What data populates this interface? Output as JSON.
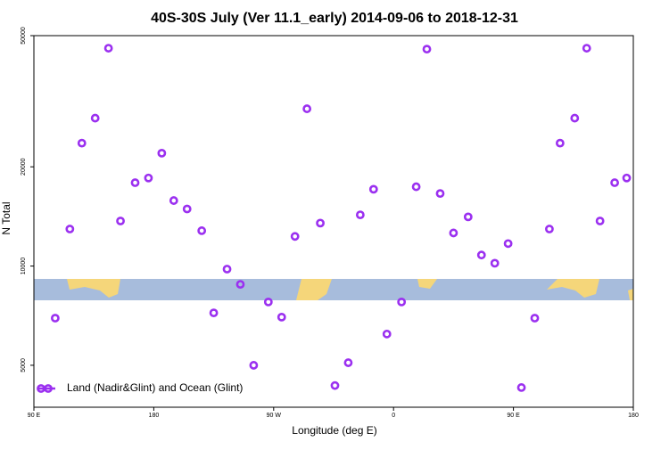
{
  "chart_data": {
    "type": "scatter",
    "title": "40S-30S July (Ver 11.1_early)   2014-09-06 to 2018-12-31",
    "x_label": "Longitude (deg E)",
    "y_label": "N Total",
    "log_y": true,
    "legend": "bottom-left",
    "xlim": [
      90,
      540
    ],
    "xticks": [
      {
        "value": 90,
        "label": "90 E"
      },
      180,
      {
        "value": 270,
        "label": "90 W"
      },
      {
        "value": 360,
        "label": "0"
      },
      {
        "value": 450,
        "label": "90 E"
      },
      {
        "value": 540,
        "label": "180"
      }
    ],
    "ylim": [
      3730,
      50000
    ],
    "yticks": [
      5000,
      10000,
      20000,
      50000
    ],
    "series": [
      {
        "name": "Land (Nadir&Glint) and Ocean (Glint)",
        "color": "#9b30f0",
        "x": [
          106,
          117,
          126,
          136,
          146,
          155,
          166,
          176,
          186,
          195,
          205,
          216,
          225,
          235,
          245,
          255,
          266,
          276,
          286,
          295,
          305,
          316,
          326,
          335,
          345,
          355,
          366,
          377,
          385,
          395,
          405,
          416,
          426,
          436,
          446,
          456,
          466,
          477,
          485,
          496,
          505,
          515,
          526,
          535
        ],
        "values": [
          6950,
          12950,
          23600,
          28100,
          45800,
          13700,
          17900,
          18500,
          22000,
          15800,
          14900,
          12800,
          7210,
          9790,
          8800,
          5000,
          7780,
          7000,
          12300,
          30000,
          13500,
          4340,
          5090,
          14300,
          17100,
          6220,
          7780,
          17400,
          45500,
          16600,
          12600,
          14100,
          10800,
          10200,
          11700,
          4280,
          6950,
          12950,
          23600,
          28100,
          45800,
          13700,
          17900,
          18500
        ]
      }
    ]
  }
}
